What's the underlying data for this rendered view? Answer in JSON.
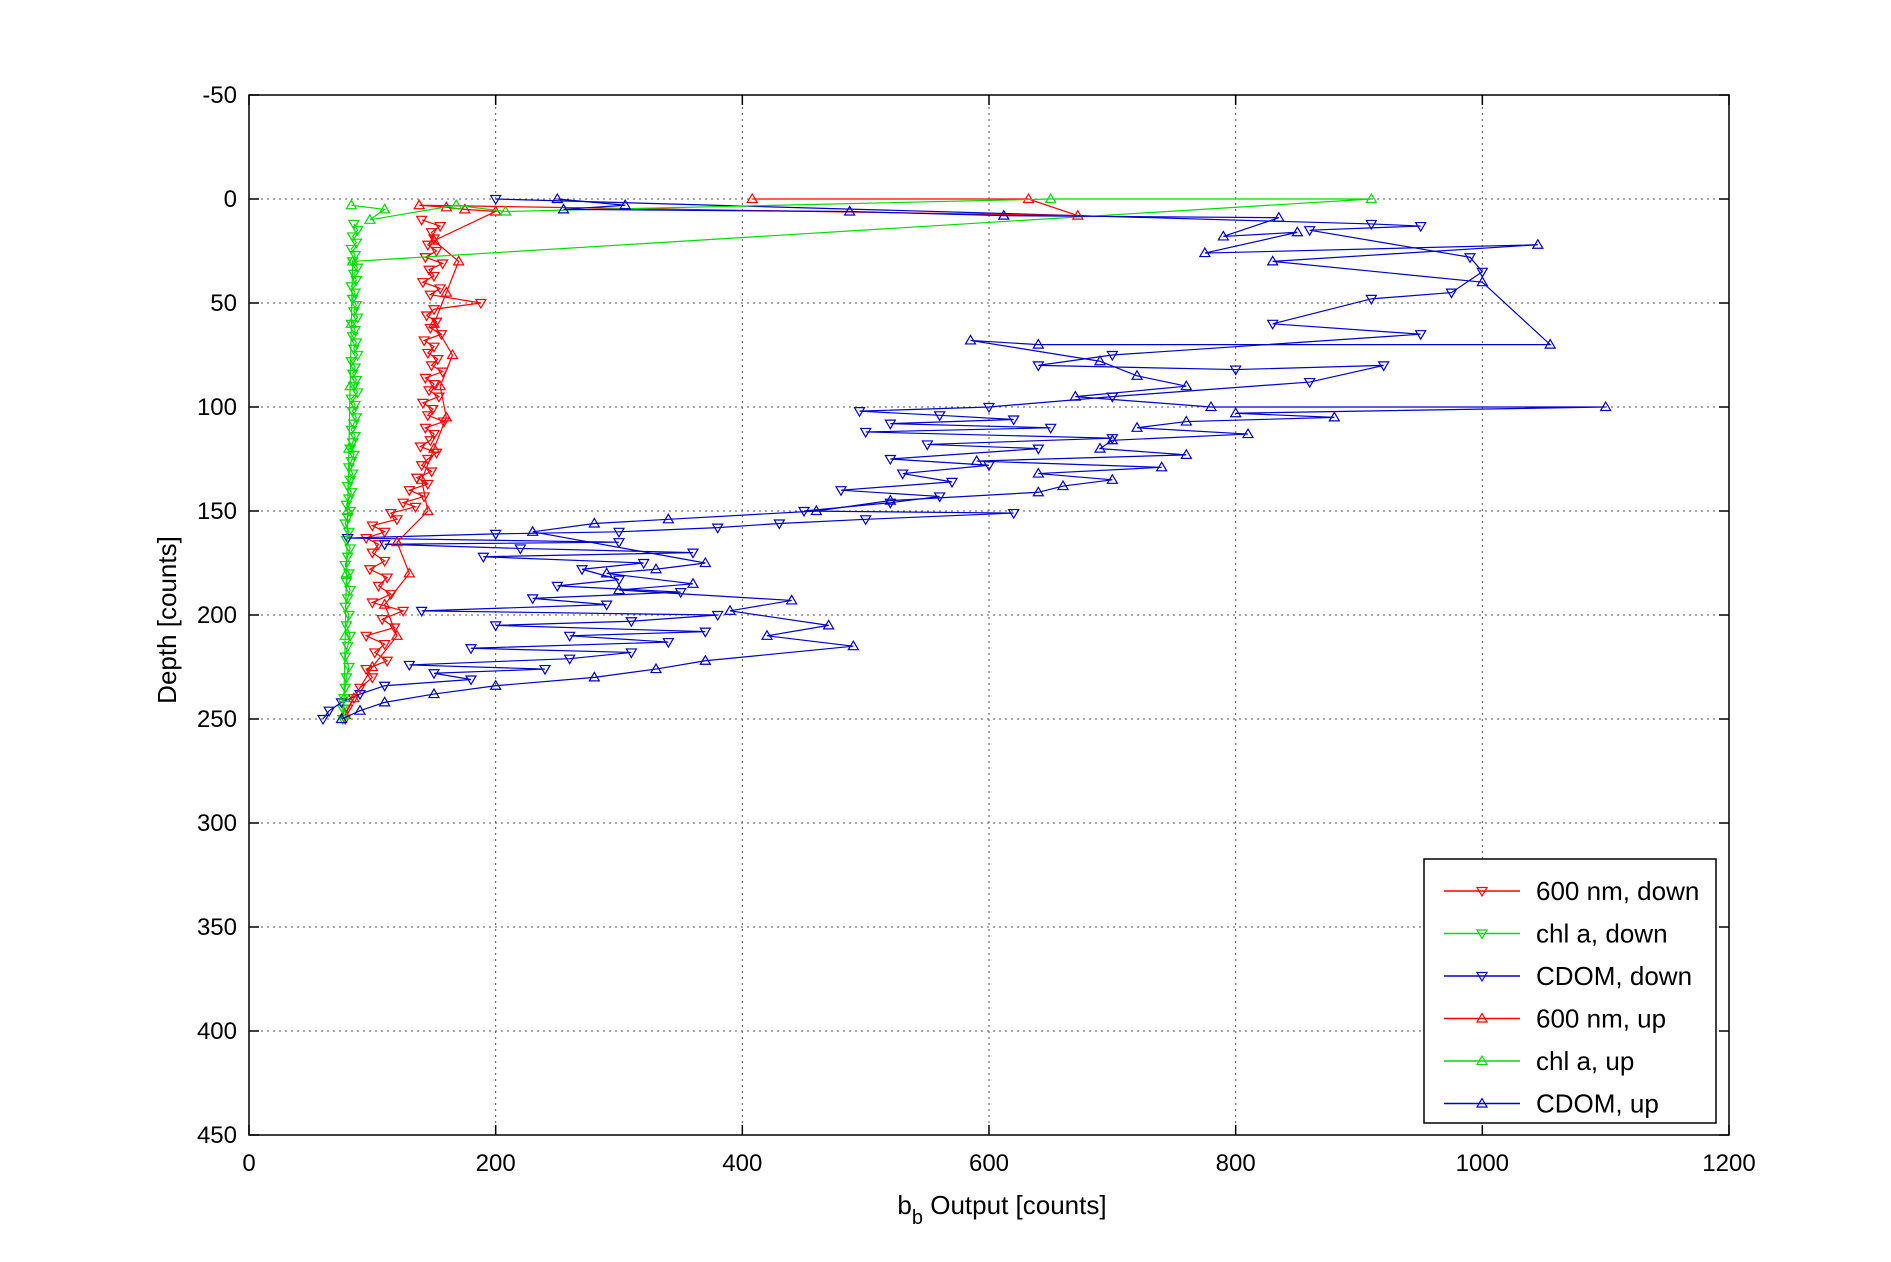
{
  "chart_data": {
    "type": "scatter",
    "xlabel_main": "b",
    "xlabel_sub": "b",
    "xlabel_rest": " Output [counts]",
    "ylabel": "Depth [counts]",
    "xlim": [
      0,
      1200
    ],
    "ylim": [
      -50,
      450
    ],
    "y_reversed": true,
    "grid": true,
    "legend_position": "bottom-right",
    "x_ticks": [
      0,
      200,
      400,
      600,
      800,
      1000,
      1200
    ],
    "y_ticks": [
      -50,
      0,
      50,
      100,
      150,
      200,
      250,
      300,
      350,
      400,
      450
    ],
    "series": [
      {
        "name": "600 nm, down",
        "color": "#ff0000",
        "marker": "triangle-down",
        "points": [
          [
            140,
            10
          ],
          [
            155,
            13
          ],
          [
            148,
            16
          ],
          [
            150,
            19
          ],
          [
            145,
            22
          ],
          [
            152,
            25
          ],
          [
            143,
            28
          ],
          [
            157,
            31
          ],
          [
            146,
            34
          ],
          [
            150,
            37
          ],
          [
            141,
            40
          ],
          [
            155,
            43
          ],
          [
            147,
            46
          ],
          [
            188,
            50
          ],
          [
            150,
            53
          ],
          [
            144,
            56
          ],
          [
            152,
            59
          ],
          [
            147,
            62
          ],
          [
            156,
            65
          ],
          [
            142,
            68
          ],
          [
            150,
            71
          ],
          [
            145,
            74
          ],
          [
            153,
            77
          ],
          [
            148,
            80
          ],
          [
            157,
            83
          ],
          [
            143,
            86
          ],
          [
            150,
            89
          ],
          [
            146,
            92
          ],
          [
            154,
            95
          ],
          [
            141,
            98
          ],
          [
            149,
            101
          ],
          [
            145,
            104
          ],
          [
            158,
            107
          ],
          [
            143,
            110
          ],
          [
            150,
            113
          ],
          [
            147,
            116
          ],
          [
            139,
            119
          ],
          [
            152,
            122
          ],
          [
            145,
            125
          ],
          [
            140,
            128
          ],
          [
            148,
            131
          ],
          [
            136,
            134
          ],
          [
            145,
            137
          ],
          [
            130,
            140
          ],
          [
            142,
            143
          ],
          [
            125,
            146
          ],
          [
            135,
            148
          ],
          [
            115,
            151
          ],
          [
            120,
            154
          ],
          [
            100,
            157
          ],
          [
            110,
            160
          ],
          [
            95,
            163
          ],
          [
            105,
            166
          ],
          [
            100,
            170
          ],
          [
            110,
            174
          ],
          [
            98,
            178
          ],
          [
            112,
            182
          ],
          [
            105,
            186
          ],
          [
            115,
            190
          ],
          [
            100,
            194
          ],
          [
            125,
            198
          ],
          [
            108,
            202
          ],
          [
            118,
            206
          ],
          [
            95,
            210
          ],
          [
            110,
            214
          ],
          [
            102,
            218
          ],
          [
            112,
            222
          ],
          [
            95,
            226
          ],
          [
            100,
            230
          ],
          [
            90,
            235
          ],
          [
            85,
            240
          ],
          [
            80,
            245
          ],
          [
            78,
            250
          ]
        ]
      },
      {
        "name": "chl a, down",
        "color": "#00dd00",
        "marker": "triangle-down",
        "points": [
          [
            85,
            12
          ],
          [
            88,
            15
          ],
          [
            84,
            18
          ],
          [
            87,
            21
          ],
          [
            83,
            24
          ],
          [
            86,
            27
          ],
          [
            84,
            30
          ],
          [
            88,
            33
          ],
          [
            85,
            36
          ],
          [
            87,
            39
          ],
          [
            83,
            42
          ],
          [
            86,
            45
          ],
          [
            84,
            48
          ],
          [
            87,
            51
          ],
          [
            85,
            54
          ],
          [
            88,
            57
          ],
          [
            83,
            60
          ],
          [
            86,
            63
          ],
          [
            84,
            66
          ],
          [
            87,
            69
          ],
          [
            85,
            72
          ],
          [
            88,
            75
          ],
          [
            83,
            78
          ],
          [
            86,
            81
          ],
          [
            84,
            84
          ],
          [
            87,
            87
          ],
          [
            85,
            90
          ],
          [
            88,
            93
          ],
          [
            83,
            96
          ],
          [
            86,
            99
          ],
          [
            84,
            102
          ],
          [
            87,
            105
          ],
          [
            85,
            108
          ],
          [
            83,
            111
          ],
          [
            86,
            114
          ],
          [
            84,
            117
          ],
          [
            82,
            120
          ],
          [
            85,
            123
          ],
          [
            83,
            126
          ],
          [
            81,
            129
          ],
          [
            84,
            132
          ],
          [
            82,
            135
          ],
          [
            80,
            138
          ],
          [
            83,
            141
          ],
          [
            81,
            144
          ],
          [
            79,
            147
          ],
          [
            82,
            150
          ],
          [
            80,
            153
          ],
          [
            78,
            156
          ],
          [
            81,
            160
          ],
          [
            79,
            164
          ],
          [
            82,
            168
          ],
          [
            80,
            172
          ],
          [
            78,
            176
          ],
          [
            81,
            180
          ],
          [
            79,
            184
          ],
          [
            82,
            188
          ],
          [
            80,
            192
          ],
          [
            78,
            196
          ],
          [
            81,
            200
          ],
          [
            79,
            205
          ],
          [
            82,
            210
          ],
          [
            80,
            215
          ],
          [
            78,
            220
          ],
          [
            81,
            225
          ],
          [
            79,
            230
          ],
          [
            78,
            235
          ],
          [
            77,
            240
          ],
          [
            76,
            245
          ],
          [
            76,
            250
          ]
        ]
      },
      {
        "name": "CDOM, down",
        "color": "#0000cc",
        "marker": "triangle-down",
        "points": [
          [
            200,
            0
          ],
          [
            910,
            12
          ],
          [
            950,
            13
          ],
          [
            860,
            15
          ],
          [
            990,
            28
          ],
          [
            1000,
            35
          ],
          [
            975,
            45
          ],
          [
            910,
            48
          ],
          [
            830,
            60
          ],
          [
            950,
            65
          ],
          [
            700,
            75
          ],
          [
            640,
            80
          ],
          [
            800,
            82
          ],
          [
            920,
            80
          ],
          [
            860,
            88
          ],
          [
            700,
            95
          ],
          [
            600,
            100
          ],
          [
            495,
            102
          ],
          [
            560,
            104
          ],
          [
            620,
            106
          ],
          [
            520,
            108
          ],
          [
            650,
            110
          ],
          [
            500,
            112
          ],
          [
            700,
            115
          ],
          [
            550,
            118
          ],
          [
            640,
            120
          ],
          [
            520,
            125
          ],
          [
            600,
            128
          ],
          [
            530,
            132
          ],
          [
            570,
            136
          ],
          [
            480,
            140
          ],
          [
            560,
            143
          ],
          [
            520,
            146
          ],
          [
            450,
            150
          ],
          [
            620,
            151
          ],
          [
            500,
            154
          ],
          [
            430,
            156
          ],
          [
            380,
            158
          ],
          [
            300,
            160
          ],
          [
            200,
            161
          ],
          [
            80,
            163
          ],
          [
            300,
            165
          ],
          [
            110,
            166
          ],
          [
            220,
            168
          ],
          [
            360,
            170
          ],
          [
            190,
            172
          ],
          [
            320,
            175
          ],
          [
            270,
            178
          ],
          [
            300,
            183
          ],
          [
            250,
            186
          ],
          [
            350,
            189
          ],
          [
            230,
            192
          ],
          [
            290,
            195
          ],
          [
            140,
            198
          ],
          [
            380,
            200
          ],
          [
            310,
            203
          ],
          [
            200,
            205
          ],
          [
            370,
            208
          ],
          [
            260,
            210
          ],
          [
            340,
            213
          ],
          [
            180,
            216
          ],
          [
            310,
            218
          ],
          [
            260,
            221
          ],
          [
            130,
            224
          ],
          [
            240,
            226
          ],
          [
            150,
            228
          ],
          [
            180,
            231
          ],
          [
            110,
            234
          ],
          [
            90,
            238
          ],
          [
            75,
            242
          ],
          [
            65,
            246
          ],
          [
            60,
            250
          ]
        ]
      },
      {
        "name": "600 nm, up",
        "color": "#ff0000",
        "marker": "triangle-up",
        "points": [
          [
            408,
            0
          ],
          [
            632,
            0
          ],
          [
            672,
            8
          ],
          [
            138,
            3
          ],
          [
            160,
            4
          ],
          [
            175,
            5
          ],
          [
            200,
            6
          ],
          [
            150,
            20
          ],
          [
            170,
            30
          ],
          [
            160,
            45
          ],
          [
            150,
            60
          ],
          [
            165,
            75
          ],
          [
            155,
            90
          ],
          [
            160,
            105
          ],
          [
            150,
            120
          ],
          [
            140,
            135
          ],
          [
            145,
            150
          ],
          [
            120,
            165
          ],
          [
            130,
            180
          ],
          [
            110,
            195
          ],
          [
            120,
            210
          ],
          [
            100,
            225
          ],
          [
            85,
            240
          ],
          [
            78,
            248
          ]
        ]
      },
      {
        "name": "chl a, up",
        "color": "#00dd00",
        "marker": "triangle-up",
        "points": [
          [
            83,
            3
          ],
          [
            110,
            5
          ],
          [
            98,
            10
          ],
          [
            168,
            3
          ],
          [
            208,
            6
          ],
          [
            650,
            0
          ],
          [
            910,
            0
          ],
          [
            84,
            30
          ],
          [
            83,
            60
          ],
          [
            82,
            90
          ],
          [
            81,
            120
          ],
          [
            80,
            150
          ],
          [
            79,
            180
          ],
          [
            78,
            210
          ],
          [
            77,
            240
          ],
          [
            77,
            248
          ]
        ]
      },
      {
        "name": "CDOM, up",
        "color": "#0000cc",
        "marker": "triangle-up",
        "points": [
          [
            250,
            0
          ],
          [
            305,
            3
          ],
          [
            255,
            5
          ],
          [
            487,
            6
          ],
          [
            612,
            8
          ],
          [
            835,
            9
          ],
          [
            790,
            18
          ],
          [
            850,
            16
          ],
          [
            775,
            26
          ],
          [
            1045,
            22
          ],
          [
            830,
            30
          ],
          [
            1000,
            40
          ],
          [
            1055,
            70
          ],
          [
            640,
            70
          ],
          [
            585,
            68
          ],
          [
            690,
            78
          ],
          [
            720,
            85
          ],
          [
            760,
            90
          ],
          [
            670,
            95
          ],
          [
            780,
            100
          ],
          [
            1100,
            100
          ],
          [
            800,
            103
          ],
          [
            880,
            105
          ],
          [
            760,
            107
          ],
          [
            720,
            110
          ],
          [
            810,
            113
          ],
          [
            700,
            116
          ],
          [
            690,
            120
          ],
          [
            760,
            123
          ],
          [
            590,
            126
          ],
          [
            740,
            129
          ],
          [
            640,
            132
          ],
          [
            700,
            135
          ],
          [
            660,
            138
          ],
          [
            640,
            141
          ],
          [
            520,
            145
          ],
          [
            460,
            150
          ],
          [
            340,
            154
          ],
          [
            280,
            156
          ],
          [
            230,
            160
          ],
          [
            370,
            175
          ],
          [
            330,
            178
          ],
          [
            290,
            180
          ],
          [
            360,
            185
          ],
          [
            300,
            188
          ],
          [
            440,
            193
          ],
          [
            390,
            198
          ],
          [
            470,
            205
          ],
          [
            420,
            210
          ],
          [
            490,
            215
          ],
          [
            370,
            222
          ],
          [
            330,
            226
          ],
          [
            280,
            230
          ],
          [
            200,
            234
          ],
          [
            150,
            238
          ],
          [
            110,
            242
          ],
          [
            90,
            246
          ],
          [
            75,
            250
          ]
        ]
      }
    ]
  }
}
